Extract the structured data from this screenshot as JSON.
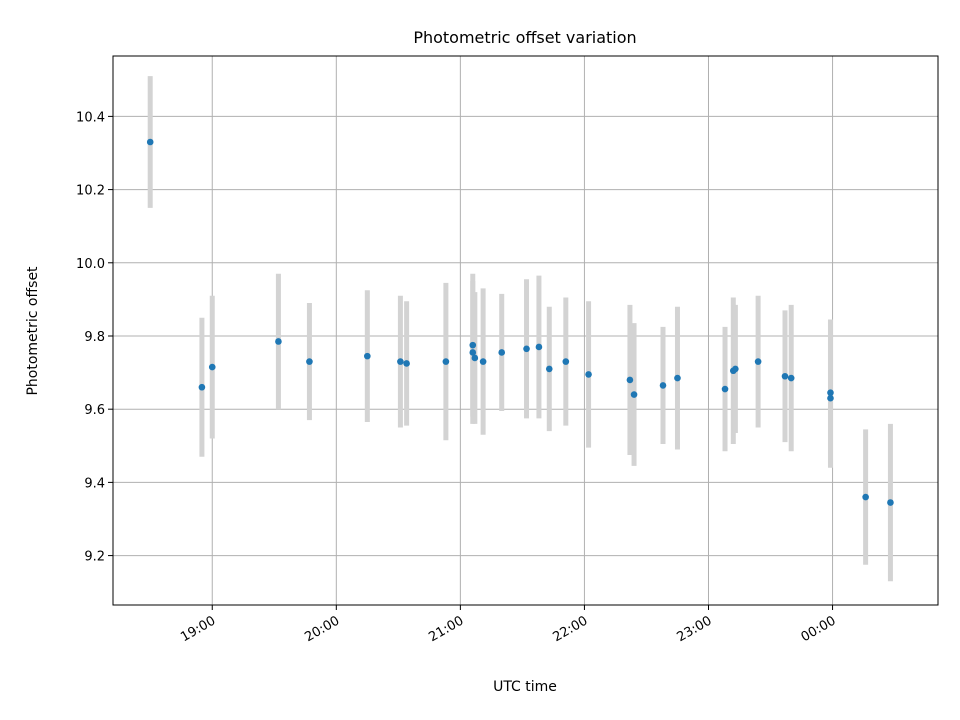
{
  "chart_data": {
    "type": "scatter",
    "title": "Photometric offset variation",
    "xlabel": "UTC time",
    "ylabel": "Photometric offset",
    "xlim": [
      "18:12",
      "00:51"
    ],
    "ylim": [
      9.065,
      10.565
    ],
    "x_ticks": [
      "19:00",
      "20:00",
      "21:00",
      "22:00",
      "23:00",
      "00:00"
    ],
    "y_ticks": [
      "9.2",
      "9.4",
      "9.6",
      "9.8",
      "10.0",
      "10.2",
      "10.4"
    ],
    "grid": true,
    "colors": {
      "marker": "#1f77b4",
      "errorbar": "#d3d3d3",
      "grid": "#b0b0b0"
    },
    "points": [
      {
        "x": "18:30",
        "y": 10.33,
        "yerr": 0.18
      },
      {
        "x": "18:55",
        "y": 9.66,
        "yerr": 0.19
      },
      {
        "x": "19:00",
        "y": 9.715,
        "yerr": 0.195
      },
      {
        "x": "19:32",
        "y": 9.785,
        "yerr": 0.185
      },
      {
        "x": "19:47",
        "y": 9.73,
        "yerr": 0.16
      },
      {
        "x": "20:15",
        "y": 9.745,
        "yerr": 0.18
      },
      {
        "x": "20:31",
        "y": 9.73,
        "yerr": 0.18
      },
      {
        "x": "20:34",
        "y": 9.725,
        "yerr": 0.17
      },
      {
        "x": "20:53",
        "y": 9.73,
        "yerr": 0.215
      },
      {
        "x": "21:06",
        "y": 9.775,
        "yerr": 0.195
      },
      {
        "x": "21:06",
        "y": 9.755,
        "yerr": 0.195
      },
      {
        "x": "21:07",
        "y": 9.74,
        "yerr": 0.18
      },
      {
        "x": "21:11",
        "y": 9.73,
        "yerr": 0.2
      },
      {
        "x": "21:20",
        "y": 9.755,
        "yerr": 0.16
      },
      {
        "x": "21:32",
        "y": 9.765,
        "yerr": 0.19
      },
      {
        "x": "21:38",
        "y": 9.77,
        "yerr": 0.195
      },
      {
        "x": "21:43",
        "y": 9.71,
        "yerr": 0.17
      },
      {
        "x": "21:51",
        "y": 9.73,
        "yerr": 0.175
      },
      {
        "x": "22:02",
        "y": 9.695,
        "yerr": 0.2
      },
      {
        "x": "22:22",
        "y": 9.68,
        "yerr": 0.205
      },
      {
        "x": "22:24",
        "y": 9.64,
        "yerr": 0.195
      },
      {
        "x": "22:38",
        "y": 9.665,
        "yerr": 0.16
      },
      {
        "x": "22:45",
        "y": 9.685,
        "yerr": 0.195
      },
      {
        "x": "23:08",
        "y": 9.655,
        "yerr": 0.17
      },
      {
        "x": "23:12",
        "y": 9.705,
        "yerr": 0.2
      },
      {
        "x": "23:13",
        "y": 9.71,
        "yerr": 0.175
      },
      {
        "x": "23:24",
        "y": 9.73,
        "yerr": 0.18
      },
      {
        "x": "23:37",
        "y": 9.69,
        "yerr": 0.18
      },
      {
        "x": "23:40",
        "y": 9.685,
        "yerr": 0.2
      },
      {
        "x": "23:59",
        "y": 9.645,
        "yerr": 0.2
      },
      {
        "x": "23:59",
        "y": 9.63,
        "yerr": 0.19
      },
      {
        "x": "00:16",
        "y": 9.36,
        "yerr": 0.185
      },
      {
        "x": "00:28",
        "y": 9.345,
        "yerr": 0.215
      }
    ]
  }
}
